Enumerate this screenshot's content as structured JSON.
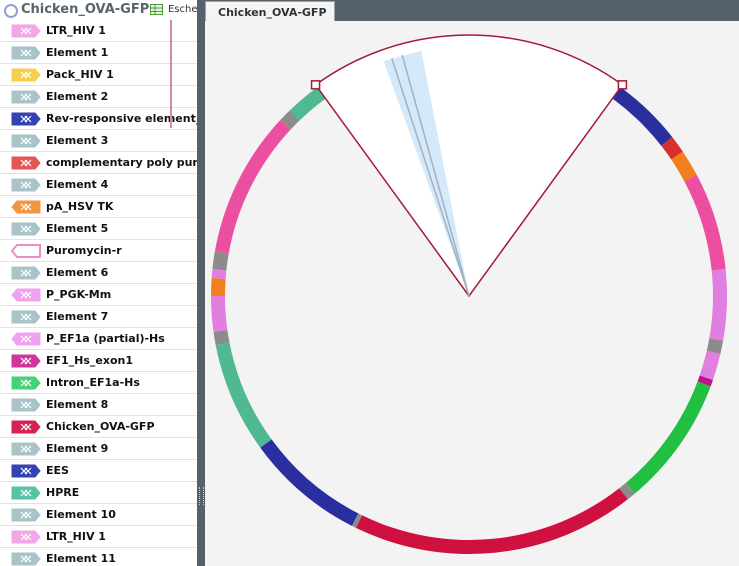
{
  "header": {
    "title": "Chicken_OVA-GFP",
    "organism": "Esche"
  },
  "tab": {
    "label": "Chicken_OVA-GFP"
  },
  "features": [
    {
      "label": "LTR_HIV 1",
      "color": "#f2a6e6"
    },
    {
      "label": "Element 1",
      "color": "#a8c4c8"
    },
    {
      "label": "Pack_HIV 1",
      "color": "#f5cf4a"
    },
    {
      "label": "Element 2",
      "color": "#a8c4c8"
    },
    {
      "label": "Rev-responsive element_H",
      "color": "#3343b3"
    },
    {
      "label": "Element 3",
      "color": "#a8c4c8"
    },
    {
      "label": "complementary poly purine",
      "color": "#e35656"
    },
    {
      "label": "Element 4",
      "color": "#a8c4c8"
    },
    {
      "label": "pA_HSV TK",
      "color": "#f39443"
    },
    {
      "label": "Element 5",
      "color": "#a8c4c8"
    },
    {
      "label": "Puromycin-r",
      "color": "#ec8fc8"
    },
    {
      "label": "Element 6",
      "color": "#a8c4c8"
    },
    {
      "label": "P_PGK-Mm",
      "color": "#efa2ef"
    },
    {
      "label": "Element 7",
      "color": "#a8c4c8"
    },
    {
      "label": "P_EF1a (partial)-Hs",
      "color": "#efa2ef"
    },
    {
      "label": "EF1_Hs_exon1",
      "color": "#d2339c"
    },
    {
      "label": "Intron_EF1a-Hs",
      "color": "#45d276"
    },
    {
      "label": "Element 8",
      "color": "#a8c4c8"
    },
    {
      "label": "Chicken_OVA-GFP",
      "color": "#d42352"
    },
    {
      "label": "Element 9",
      "color": "#a8c4c8"
    },
    {
      "label": "EES",
      "color": "#3343b3"
    },
    {
      "label": "HPRE",
      "color": "#55c4a4"
    },
    {
      "label": "Element 10",
      "color": "#a8c4c8"
    },
    {
      "label": "LTR_HIV 1",
      "color": "#f2a6e6"
    },
    {
      "label": "Element 11",
      "color": "#a8c4c8"
    }
  ]
}
